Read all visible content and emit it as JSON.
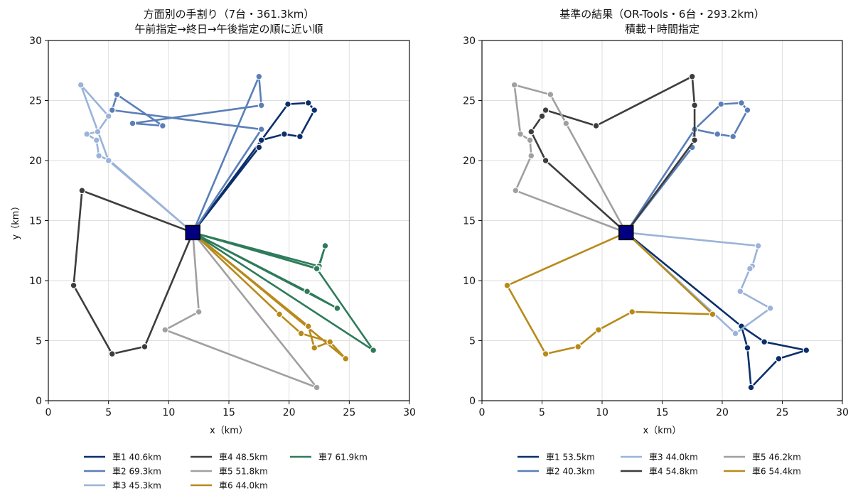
{
  "chart_data": [
    {
      "type": "line",
      "title": "方面別の手割り（7台・361.3km）",
      "subtitle": "午前指定→終日→午後指定の順に近い順",
      "xlabel": "x（km）",
      "ylabel": "y（km）",
      "xlim": [
        0,
        30
      ],
      "ylim": [
        0,
        30
      ],
      "xticks": [
        0,
        5,
        10,
        15,
        20,
        25,
        30
      ],
      "yticks": [
        0,
        5,
        10,
        15,
        20,
        25,
        30
      ],
      "grid": true,
      "legend_placement": "bottom",
      "depot": {
        "x": 12,
        "y": 14,
        "color": "#000080"
      },
      "series": [
        {
          "name": "車1 40.6km",
          "color": "#0b2f6b",
          "points": [
            [
              12,
              14
            ],
            [
              17.5,
              21.1
            ],
            [
              17.7,
              21.7
            ],
            [
              19.6,
              22.2
            ],
            [
              20.9,
              22
            ],
            [
              22.1,
              24.2
            ],
            [
              21.6,
              24.8
            ],
            [
              19.9,
              24.7
            ],
            [
              17.7,
              21.7
            ],
            [
              12,
              14
            ]
          ]
        },
        {
          "name": "車2 69.3km",
          "color": "#5a7fb8",
          "points": [
            [
              12,
              14
            ],
            [
              17.5,
              27
            ],
            [
              17.7,
              24.6
            ],
            [
              7,
              23.1
            ],
            [
              9.5,
              22.9
            ],
            [
              5.7,
              25.5
            ],
            [
              5.3,
              24.2
            ],
            [
              17.7,
              22.6
            ],
            [
              12,
              14
            ]
          ]
        },
        {
          "name": "車3 45.3km",
          "color": "#9bb3d9",
          "points": [
            [
              12,
              14
            ],
            [
              5.1,
              20
            ],
            [
              4.2,
              20.4
            ],
            [
              4,
              21.7
            ],
            [
              3.2,
              22.2
            ],
            [
              4.1,
              22.4
            ],
            [
              5,
              23.7
            ],
            [
              2.7,
              26.3
            ],
            [
              5,
              20
            ],
            [
              12,
              14
            ]
          ]
        },
        {
          "name": "車4 48.5km",
          "color": "#3d3d3d",
          "points": [
            [
              12,
              14
            ],
            [
              2.8,
              17.5
            ],
            [
              2.1,
              9.6
            ],
            [
              5.3,
              3.9
            ],
            [
              8,
              4.5
            ],
            [
              12,
              14
            ]
          ]
        },
        {
          "name": "車5 51.8km",
          "color": "#a0a0a0",
          "points": [
            [
              12,
              14
            ],
            [
              12.5,
              7.4
            ],
            [
              9.7,
              5.9
            ],
            [
              22.3,
              1.1
            ],
            [
              12,
              14
            ]
          ]
        },
        {
          "name": "車6 44.0km",
          "color": "#b88a1a",
          "points": [
            [
              12,
              14
            ],
            [
              19.2,
              7.2
            ],
            [
              21,
              5.6
            ],
            [
              23.4,
              4.9
            ],
            [
              24.7,
              3.5
            ],
            [
              12,
              14
            ],
            [
              21.6,
              6.2
            ],
            [
              22.1,
              4.4
            ],
            [
              23.4,
              4.9
            ],
            [
              24.7,
              3.5
            ],
            [
              12,
              14
            ]
          ]
        },
        {
          "name": "車7 61.9km",
          "color": "#2e7b5a",
          "points": [
            [
              12,
              14
            ],
            [
              22.5,
              11.2
            ],
            [
              23,
              12.9
            ],
            [
              22.4,
              11
            ],
            [
              12,
              14
            ],
            [
              21.5,
              9.1
            ],
            [
              24,
              7.7
            ],
            [
              12,
              14
            ],
            [
              22.3,
              11
            ],
            [
              27,
              4.2
            ],
            [
              12,
              14
            ]
          ]
        }
      ]
    },
    {
      "type": "line",
      "title": "基準の結果（OR-Tools・6台・293.2km）",
      "subtitle": "積載＋時間指定",
      "xlabel": "x（km）",
      "ylabel": "",
      "xlim": [
        0,
        30
      ],
      "ylim": [
        0,
        30
      ],
      "xticks": [
        0,
        5,
        10,
        15,
        20,
        25,
        30
      ],
      "yticks": [
        0,
        5,
        10,
        15,
        20,
        25,
        30
      ],
      "grid": true,
      "legend_placement": "bottom",
      "depot": {
        "x": 12,
        "y": 14,
        "color": "#000080"
      },
      "series": [
        {
          "name": "車1 53.5km",
          "color": "#0b2f6b",
          "points": [
            [
              12,
              14
            ],
            [
              21.6,
              6.2
            ],
            [
              23.5,
              4.9
            ],
            [
              27,
              4.2
            ],
            [
              24.7,
              3.5
            ],
            [
              22.4,
              1.1
            ],
            [
              22.1,
              4.4
            ],
            [
              21.6,
              6.2
            ],
            [
              12,
              14
            ]
          ]
        },
        {
          "name": "車2 40.3km",
          "color": "#5a7fb8",
          "points": [
            [
              12,
              14
            ],
            [
              17.5,
              21.1
            ],
            [
              17.7,
              22.6
            ],
            [
              19.6,
              22.2
            ],
            [
              20.9,
              22
            ],
            [
              22.1,
              24.2
            ],
            [
              21.6,
              24.8
            ],
            [
              19.9,
              24.7
            ],
            [
              17.7,
              22.6
            ],
            [
              12,
              14
            ]
          ]
        },
        {
          "name": "車3 44.0km",
          "color": "#9bb3d9",
          "points": [
            [
              12,
              14
            ],
            [
              23,
              12.9
            ],
            [
              22.5,
              11.2
            ],
            [
              22.3,
              11
            ],
            [
              21.5,
              9.1
            ],
            [
              24,
              7.7
            ],
            [
              21.1,
              5.6
            ],
            [
              12,
              14
            ]
          ]
        },
        {
          "name": "車4 54.8km",
          "color": "#3d3d3d",
          "points": [
            [
              12,
              14
            ],
            [
              5.3,
              20
            ],
            [
              4.1,
              22.4
            ],
            [
              5,
              23.7
            ],
            [
              5.3,
              24.2
            ],
            [
              9.5,
              22.9
            ],
            [
              17.5,
              27
            ],
            [
              17.7,
              24.6
            ],
            [
              17.7,
              21.7
            ],
            [
              12,
              14
            ]
          ]
        },
        {
          "name": "車5 46.2km",
          "color": "#a0a0a0",
          "points": [
            [
              12,
              14
            ],
            [
              2.8,
              17.5
            ],
            [
              4.1,
              20.4
            ],
            [
              4,
              21.7
            ],
            [
              3.2,
              22.2
            ],
            [
              2.7,
              26.3
            ],
            [
              5.7,
              25.5
            ],
            [
              7,
              23.1
            ],
            [
              12,
              14
            ]
          ]
        },
        {
          "name": "車6 54.4km",
          "color": "#b88a1a",
          "points": [
            [
              12,
              14
            ],
            [
              2.1,
              9.6
            ],
            [
              5.3,
              3.9
            ],
            [
              8,
              4.5
            ],
            [
              9.7,
              5.9
            ],
            [
              12.5,
              7.4
            ],
            [
              19.2,
              7.2
            ],
            [
              12,
              14
            ]
          ]
        }
      ]
    }
  ]
}
